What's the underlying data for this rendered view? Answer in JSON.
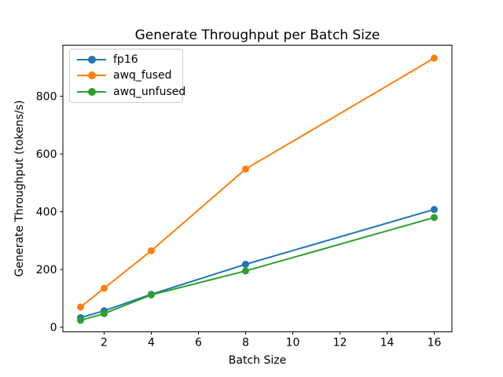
{
  "chart_data": {
    "type": "line",
    "title": "Generate Throughput per Batch Size",
    "xlabel": "Batch Size",
    "ylabel": "Generate Throughput (tokens/s)",
    "x": [
      1,
      2,
      4,
      8,
      16
    ],
    "series": [
      {
        "name": "fp16",
        "color": "#1f77b4",
        "values": [
          33,
          57,
          114,
          218,
          408
        ]
      },
      {
        "name": "awq_fused",
        "color": "#ff7f0e",
        "values": [
          70,
          135,
          265,
          548,
          932
        ]
      },
      {
        "name": "awq_unfused",
        "color": "#2ca02c",
        "values": [
          24,
          47,
          112,
          195,
          380
        ]
      }
    ],
    "xticks": [
      2,
      4,
      6,
      8,
      10,
      12,
      14,
      16
    ],
    "yticks": [
      0,
      200,
      400,
      600,
      800
    ],
    "xlim": [
      0.25,
      16.75
    ],
    "ylim": [
      -16,
      977
    ],
    "grid": false,
    "legend_position": "upper left",
    "marker": "o"
  }
}
